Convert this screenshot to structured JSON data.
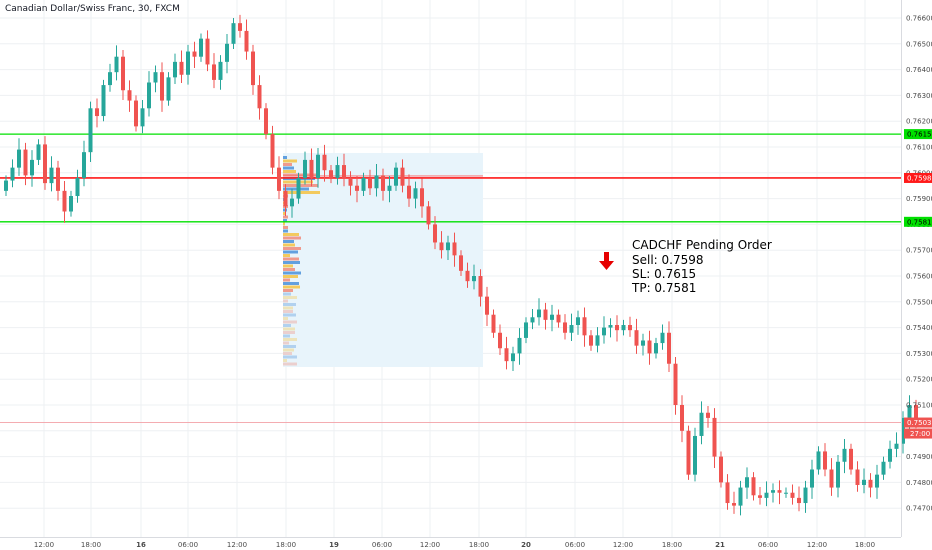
{
  "header": {
    "title": "Canadian Dollar/Swiss Franc, 30, FXCM"
  },
  "colors": {
    "up": "#26a69a",
    "down": "#ef5350",
    "resistance": "#00e000",
    "entry": "#ff1a1a",
    "support": "#00e000",
    "profile_area": "#e8f4fb",
    "grid": "#eef0f3"
  },
  "chart_data": {
    "type": "candlestick",
    "ylim": [
      0.7465,
      0.7667
    ],
    "y_ticks": [
      "0.76600",
      "0.76500",
      "0.76400",
      "0.76300",
      "0.76200",
      "0.76100",
      "0.76000",
      "0.75900",
      "0.75800",
      "0.75700",
      "0.75600",
      "0.75500",
      "0.75400",
      "0.75300",
      "0.75200",
      "0.75100",
      "0.75000",
      "0.74900",
      "0.74800",
      "0.74700"
    ],
    "x_ticks": [
      "12:00",
      "18:00",
      "16",
      "06:00",
      "12:00",
      "18:00",
      "19",
      "06:00",
      "12:00",
      "18:00",
      "20",
      "06:00",
      "12:00",
      "18:00",
      "21",
      "06:00",
      "12:00",
      "18:00"
    ],
    "levels": [
      {
        "name": "stop-loss",
        "value": 0.7615,
        "label": "0.76150"
      },
      {
        "name": "entry",
        "value": 0.7598,
        "label": "0.75980"
      },
      {
        "name": "take-profit",
        "value": 0.7581,
        "label": "0.75810"
      }
    ],
    "current_price": {
      "value": 0.75032,
      "label": "0.75032",
      "countdown": "27:00"
    },
    "annotation": {
      "arrow": "down-arrow",
      "lines": [
        "CADCHF Pending Order",
        "Sell: 0.7598",
        "SL: 0.7615",
        "TP: 0.7581"
      ]
    },
    "closes": [
      0.7597,
      0.7602,
      0.7609,
      0.7599,
      0.7605,
      0.7611,
      0.7596,
      0.7602,
      0.7593,
      0.7585,
      0.7591,
      0.7598,
      0.7608,
      0.7625,
      0.7622,
      0.7634,
      0.7639,
      0.7645,
      0.7632,
      0.7628,
      0.7618,
      0.7625,
      0.7635,
      0.7639,
      0.7628,
      0.7637,
      0.7643,
      0.7638,
      0.7647,
      0.7645,
      0.7652,
      0.7642,
      0.7636,
      0.7643,
      0.765,
      0.7658,
      0.7655,
      0.7647,
      0.7634,
      0.7625,
      0.7615,
      0.7602,
      0.7593,
      0.7587,
      0.759,
      0.7598,
      0.7605,
      0.7598,
      0.7607,
      0.7601,
      0.7598,
      0.7603,
      0.7598,
      0.7595,
      0.7593,
      0.7598,
      0.7594,
      0.7599,
      0.7593,
      0.7595,
      0.7602,
      0.7595,
      0.759,
      0.7594,
      0.7587,
      0.758,
      0.7573,
      0.757,
      0.7573,
      0.7568,
      0.7562,
      0.7558,
      0.756,
      0.7552,
      0.7545,
      0.7538,
      0.7532,
      0.7527,
      0.753,
      0.7536,
      0.7542,
      0.7544,
      0.7547,
      0.7543,
      0.7545,
      0.7542,
      0.7538,
      0.7541,
      0.7544,
      0.7537,
      0.7533,
      0.7537,
      0.754,
      0.7541,
      0.7539,
      0.7541,
      0.7539,
      0.7533,
      0.7535,
      0.753,
      0.7534,
      0.7538,
      0.7526,
      0.751,
      0.75,
      0.7483,
      0.7498,
      0.7507,
      0.7505,
      0.749,
      0.748,
      0.7472,
      0.7471,
      0.7478,
      0.7482,
      0.7475,
      0.7474,
      0.7476,
      0.7477,
      0.7476,
      0.7476,
      0.7474,
      0.7472,
      0.7478,
      0.7485,
      0.7492,
      0.7485,
      0.7478,
      0.7488,
      0.7493,
      0.7485,
      0.7479,
      0.7481,
      0.7478,
      0.7483,
      0.7488,
      0.7493,
      0.7495,
      0.7505,
      0.751,
      0.7503
    ]
  }
}
